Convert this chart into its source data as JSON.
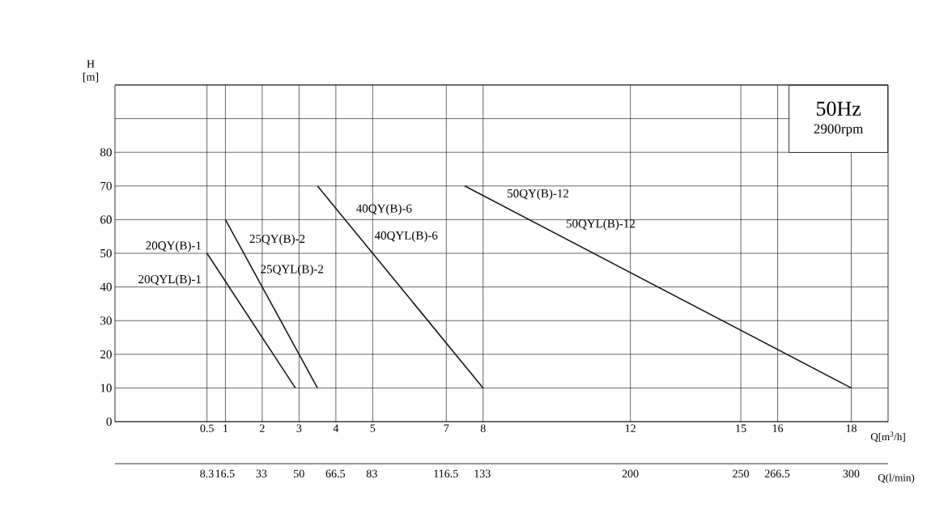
{
  "chart_data": {
    "type": "line",
    "xlabel": "Q[m$^{3}$/h]",
    "ylabel": "H [m]",
    "x2label": "Q(l/min)",
    "xlim": [
      -2,
      19
    ],
    "xticks": [
      0.5,
      1,
      2,
      3,
      4,
      5,
      7,
      8,
      12,
      15,
      16,
      18
    ],
    "x2lim": [
      -33.3,
      316.7
    ],
    "x2ticks": [
      8.3,
      16.5,
      33,
      50,
      66.5,
      83,
      116.5,
      133,
      200,
      250,
      266.5,
      300
    ],
    "ylim": [
      0,
      100
    ],
    "yticks": [
      0,
      10,
      20,
      30,
      40,
      50,
      60,
      70,
      80,
      {
        "value": 90,
        "label": null
      },
      {
        "value": 100,
        "label": null
      }
    ],
    "grid": true,
    "marker": "none",
    "line_style": "solid",
    "series": [
      {
        "name": "20QY(B)-1",
        "color": "#1a1a1a",
        "x": [
          0.5,
          2.9
        ],
        "values": [
          50,
          10
        ]
      },
      {
        "name": "25QY(B)-2",
        "color": "#1a1a1a",
        "x": [
          1,
          3.5
        ],
        "values": [
          60,
          10
        ]
      },
      {
        "name": "40QY(B)-6",
        "color": "#1a1a1a",
        "x": [
          3.5,
          8
        ],
        "values": [
          70,
          10
        ]
      },
      {
        "name": "50QY(B)-12",
        "color": "#1a1a1a",
        "x": [
          7.5,
          18
        ],
        "values": [
          70,
          10
        ]
      }
    ],
    "annotations": [
      "20QYL(B)-1",
      "25QYL(B)-2",
      "40QYL(B)-6",
      "50QYL(B)-12",
      "50Hz",
      "2900rpm"
    ]
  }
}
